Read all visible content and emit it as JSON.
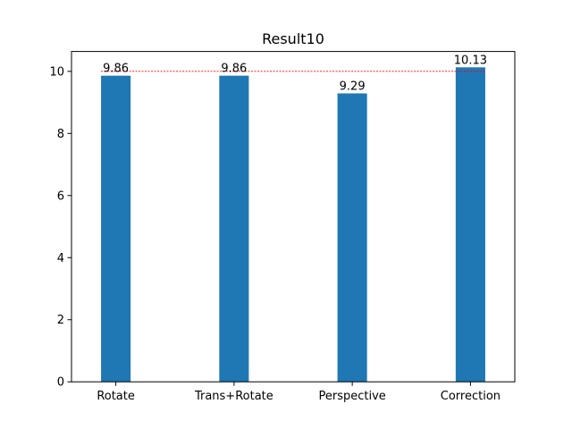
{
  "chart_data": {
    "type": "bar",
    "title": "Result10",
    "xlabel": "",
    "ylabel": "",
    "categories": [
      "Rotate",
      "Trans+Rotate",
      "Perspective",
      "Correction"
    ],
    "values": [
      9.86,
      9.86,
      9.29,
      10.13
    ],
    "data_labels": [
      "9.86",
      "9.86",
      "9.29",
      "10.13"
    ],
    "ylim": [
      0,
      10.64
    ],
    "yticks": [
      0,
      2,
      4,
      6,
      8,
      10
    ],
    "ytick_labels": [
      "0",
      "2",
      "4",
      "6",
      "8",
      "10"
    ],
    "reference_line": {
      "value": 10,
      "color": "#ff0000",
      "style": "dashed"
    },
    "bar_color": "#1f77b4",
    "grid": false,
    "legend": "none"
  }
}
